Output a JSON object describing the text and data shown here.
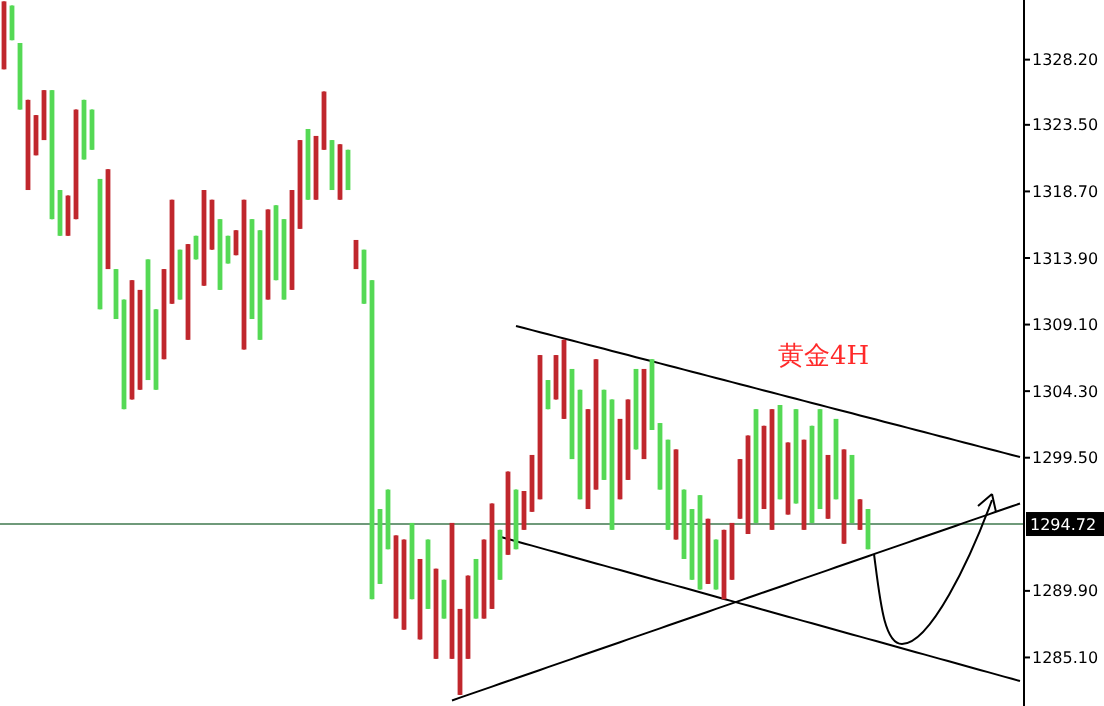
{
  "chart_data": {
    "type": "candlestick",
    "annotations": [
      "黄金4H"
    ],
    "categories": [
      null,
      null,
      null,
      null,
      null,
      null,
      null,
      null,
      null,
      null,
      null,
      null,
      null,
      null,
      null,
      null,
      null,
      null,
      null,
      null,
      null,
      null,
      null,
      null,
      null,
      null,
      null,
      null,
      null,
      null,
      null,
      null,
      null,
      null,
      null,
      null,
      null,
      null,
      null,
      null,
      null,
      null,
      null,
      null,
      null,
      null,
      null,
      null,
      null,
      null,
      null,
      null,
      null,
      null,
      null,
      null,
      null,
      null,
      null,
      null,
      null,
      null,
      null,
      null,
      null,
      null,
      null,
      null,
      null,
      null,
      null,
      null,
      null,
      null,
      null,
      null,
      null,
      null,
      null,
      null,
      null,
      null,
      null,
      null,
      null,
      null,
      null,
      null,
      null,
      null,
      null,
      null,
      null,
      null,
      null,
      null,
      null,
      null,
      null,
      null,
      null,
      null,
      null,
      null,
      null,
      null,
      null,
      null,
      null,
      null,
      null,
      null,
      null,
      null,
      null,
      null,
      null,
      null,
      null,
      null,
      null,
      null,
      null,
      null,
      null,
      null,
      null,
      null
    ],
    "ohlc": [
      [
        1327.5,
        1332.4,
        1327.5,
        1332.4
      ],
      [
        1332.1,
        1332.1,
        1329.6,
        1329.6
      ],
      [
        1329.4,
        1329.4,
        1324.6,
        1324.6
      ],
      [
        1318.8,
        1325.3,
        1318.8,
        1325.3
      ],
      [
        1321.3,
        1324.2,
        1321.3,
        1324.2
      ],
      [
        1322.4,
        1326.0,
        1322.4,
        1326.0
      ],
      [
        1326.0,
        1326.0,
        1316.7,
        1316.7
      ],
      [
        1318.8,
        1318.8,
        1315.5,
        1315.5
      ],
      [
        1315.5,
        1318.4,
        1315.5,
        1318.4
      ],
      [
        1316.7,
        1324.6,
        1316.7,
        1324.6
      ],
      [
        1325.3,
        1325.3,
        1321.0,
        1321.0
      ],
      [
        1324.6,
        1324.6,
        1321.7,
        1321.7
      ],
      [
        1319.6,
        1319.6,
        1310.2,
        1310.2
      ],
      [
        1313.1,
        1320.3,
        1313.1,
        1320.3
      ],
      [
        1313.1,
        1313.1,
        1309.5,
        1309.5
      ],
      [
        1310.9,
        1310.9,
        1303.0,
        1303.0
      ],
      [
        1303.7,
        1312.3,
        1303.7,
        1312.3
      ],
      [
        1304.4,
        1311.6,
        1304.4,
        1311.6
      ],
      [
        1313.8,
        1313.8,
        1305.1,
        1305.1
      ],
      [
        1310.2,
        1310.2,
        1304.4,
        1304.4
      ],
      [
        1306.6,
        1313.1,
        1306.6,
        1313.1
      ],
      [
        1310.6,
        1318.1,
        1310.6,
        1318.1
      ],
      [
        1314.5,
        1314.5,
        1310.9,
        1310.9
      ],
      [
        1308.0,
        1314.9,
        1308.0,
        1314.9
      ],
      [
        1315.5,
        1315.5,
        1313.8,
        1313.8
      ],
      [
        1311.9,
        1318.8,
        1311.9,
        1318.8
      ],
      [
        1314.5,
        1318.1,
        1314.5,
        1318.1
      ],
      [
        1316.7,
        1316.7,
        1311.6,
        1311.6
      ],
      [
        1315.5,
        1315.5,
        1313.5,
        1313.5
      ],
      [
        1314.1,
        1315.9,
        1314.1,
        1315.9
      ],
      [
        1307.3,
        1318.1,
        1307.3,
        1318.1
      ],
      [
        1316.7,
        1316.7,
        1309.5,
        1309.5
      ],
      [
        1315.9,
        1315.9,
        1308.0,
        1308.0
      ],
      [
        1310.9,
        1317.4,
        1310.9,
        1317.4
      ],
      [
        1317.7,
        1317.7,
        1312.3,
        1312.3
      ],
      [
        1316.7,
        1316.7,
        1310.9,
        1310.9
      ],
      [
        1311.6,
        1318.8,
        1311.6,
        1318.8
      ],
      [
        1316.0,
        1322.4,
        1316.0,
        1322.4
      ],
      [
        1323.2,
        1323.2,
        1318.1,
        1318.1
      ],
      [
        1318.1,
        1322.7,
        1318.1,
        1322.7
      ],
      [
        1321.7,
        1325.9,
        1321.7,
        1325.9
      ],
      [
        1322.4,
        1322.4,
        1318.8,
        1318.8
      ],
      [
        1318.1,
        1322.1,
        1318.1,
        1322.1
      ],
      [
        1321.7,
        1321.7,
        1318.8,
        1318.8
      ],
      [
        1313.1,
        1315.2,
        1313.1,
        1315.2
      ],
      [
        1314.5,
        1314.5,
        1310.6,
        1310.6
      ],
      [
        1312.3,
        1312.3,
        1289.3,
        1289.3
      ],
      [
        1295.8,
        1295.8,
        1290.4,
        1290.4
      ],
      [
        1297.2,
        1297.2,
        1292.9,
        1292.9
      ],
      [
        1287.9,
        1293.9,
        1287.9,
        1293.9
      ],
      [
        1287.1,
        1293.6,
        1287.1,
        1293.6
      ],
      [
        1294.8,
        1294.8,
        1289.3,
        1289.3
      ],
      [
        1286.4,
        1292.2,
        1286.4,
        1292.2
      ],
      [
        1293.6,
        1293.6,
        1288.6,
        1288.6
      ],
      [
        1285.0,
        1291.5,
        1285.0,
        1291.5
      ],
      [
        1290.7,
        1290.7,
        1287.9,
        1287.9
      ],
      [
        1285.0,
        1294.8,
        1285.0,
        1294.8
      ],
      [
        1282.4,
        1288.6,
        1282.4,
        1288.6
      ],
      [
        1285.0,
        1291.0,
        1285.0,
        1291.0
      ],
      [
        1292.2,
        1292.2,
        1287.9,
        1287.9
      ],
      [
        1287.9,
        1293.6,
        1287.9,
        1293.6
      ],
      [
        1288.6,
        1296.2,
        1288.6,
        1296.2
      ],
      [
        1294.3,
        1294.3,
        1290.7,
        1290.7
      ],
      [
        1292.5,
        1298.5,
        1292.5,
        1298.5
      ],
      [
        1297.2,
        1297.2,
        1292.9,
        1292.9
      ],
      [
        1294.3,
        1297.1,
        1294.3,
        1297.1
      ],
      [
        1295.6,
        1299.7,
        1295.6,
        1299.7
      ],
      [
        1296.5,
        1306.9,
        1296.5,
        1306.9
      ],
      [
        1305.1,
        1305.1,
        1303.0,
        1303.0
      ],
      [
        1303.7,
        1306.9,
        1303.7,
        1306.9
      ],
      [
        1302.3,
        1308.0,
        1302.3,
        1308.0
      ],
      [
        1305.9,
        1305.9,
        1299.4,
        1299.4
      ],
      [
        1304.4,
        1304.4,
        1296.5,
        1296.5
      ],
      [
        1295.8,
        1303.0,
        1295.8,
        1303.0
      ],
      [
        1297.2,
        1306.6,
        1297.2,
        1306.6
      ],
      [
        1304.4,
        1304.4,
        1297.9,
        1297.9
      ],
      [
        1303.7,
        1303.7,
        1294.3,
        1294.3
      ],
      [
        1296.5,
        1302.3,
        1296.5,
        1302.3
      ],
      [
        1297.9,
        1303.7,
        1297.9,
        1303.7
      ],
      [
        1305.9,
        1305.9,
        1300.1,
        1300.1
      ],
      [
        1299.4,
        1305.9,
        1299.4,
        1305.9
      ],
      [
        1306.6,
        1306.6,
        1301.5,
        1301.5
      ],
      [
        1302.0,
        1302.0,
        1297.2,
        1297.2
      ],
      [
        1300.8,
        1300.8,
        1294.3,
        1294.3
      ],
      [
        1293.6,
        1300.1,
        1293.6,
        1300.1
      ],
      [
        1297.2,
        1297.2,
        1292.2,
        1292.2
      ],
      [
        1295.8,
        1295.8,
        1290.7,
        1290.7
      ],
      [
        1296.8,
        1296.8,
        1290.0,
        1290.0
      ],
      [
        1290.4,
        1295.1,
        1290.4,
        1295.1
      ],
      [
        1293.6,
        1293.6,
        1290.0,
        1290.0
      ],
      [
        1289.3,
        1294.3,
        1289.3,
        1294.3
      ],
      [
        1290.7,
        1294.8,
        1290.7,
        1294.8
      ],
      [
        1295.1,
        1299.4,
        1295.1,
        1299.4
      ],
      [
        1294.0,
        1301.1,
        1294.0,
        1301.1
      ],
      [
        1303.0,
        1303.0,
        1294.8,
        1294.8
      ],
      [
        1295.8,
        1301.8,
        1295.8,
        1301.8
      ],
      [
        1294.3,
        1303.0,
        1294.3,
        1303.0
      ],
      [
        1303.3,
        1303.3,
        1296.5,
        1296.5
      ],
      [
        1295.4,
        1300.6,
        1295.4,
        1300.6
      ],
      [
        1303.0,
        1303.0,
        1296.2,
        1296.2
      ],
      [
        1294.3,
        1300.8,
        1294.3,
        1300.8
      ],
      [
        1301.8,
        1301.8,
        1294.8,
        1294.8
      ],
      [
        1303.0,
        1303.0,
        1295.8,
        1295.8
      ],
      [
        1295.1,
        1299.7,
        1295.1,
        1299.7
      ],
      [
        1302.3,
        1302.3,
        1296.5,
        1296.5
      ],
      [
        1293.3,
        1300.1,
        1293.3,
        1300.1
      ],
      [
        1299.7,
        1299.7,
        1294.8,
        1294.8
      ],
      [
        1294.3,
        1296.5,
        1294.3,
        1296.5
      ],
      [
        1295.8,
        1295.8,
        1292.9,
        1292.9
      ],
      null,
      null,
      null,
      null,
      null,
      null,
      null,
      null,
      null,
      null,
      null,
      null,
      null,
      null,
      null,
      null,
      null,
      null,
      null
    ],
    "colors": [
      "#c0272d",
      "#55d955",
      "#55d955",
      "#c0272d",
      "#c0272d",
      "#c0272d",
      "#55d955",
      "#55d955",
      "#c0272d",
      "#c0272d",
      "#55d955",
      "#55d955",
      "#55d955",
      "#c0272d",
      "#55d955",
      "#55d955",
      "#c0272d",
      "#c0272d",
      "#55d955",
      "#55d955",
      "#c0272d",
      "#c0272d",
      "#55d955",
      "#c0272d",
      "#55d955",
      "#c0272d",
      "#c0272d",
      "#55d955",
      "#55d955",
      "#c0272d",
      "#c0272d",
      "#55d955",
      "#55d955",
      "#c0272d",
      "#55d955",
      "#55d955",
      "#c0272d",
      "#c0272d",
      "#55d955",
      "#c0272d",
      "#c0272d",
      "#55d955",
      "#c0272d",
      "#55d955",
      "#c0272d",
      "#55d955",
      "#55d955",
      "#55d955",
      "#55d955",
      "#c0272d",
      "#c0272d",
      "#55d955",
      "#c0272d",
      "#55d955",
      "#c0272d",
      "#55d955",
      "#c0272d",
      "#c0272d",
      "#c0272d",
      "#55d955",
      "#c0272d",
      "#c0272d",
      "#55d955",
      "#c0272d",
      "#55d955",
      "#c0272d",
      "#c0272d",
      "#c0272d",
      "#55d955",
      "#c0272d",
      "#c0272d",
      "#55d955",
      "#55d955",
      "#c0272d",
      "#c0272d",
      "#55d955",
      "#55d955",
      "#c0272d",
      "#c0272d",
      "#55d955",
      "#c0272d",
      "#55d955",
      "#55d955",
      "#55d955",
      "#c0272d",
      "#55d955",
      "#55d955",
      "#55d955",
      "#c0272d",
      "#55d955",
      "#c0272d",
      "#c0272d",
      "#c0272d",
      "#c0272d",
      "#55d955",
      "#c0272d",
      "#c0272d",
      "#55d955",
      "#c0272d",
      "#55d955",
      "#c0272d",
      "#55d955",
      "#55d955",
      "#c0272d",
      "#55d955",
      "#c0272d",
      "#55d955",
      "#c0272d",
      "#55d955",
      null,
      null,
      null,
      null,
      null,
      null,
      null,
      null,
      null,
      null,
      null,
      null,
      null,
      null,
      null,
      null,
      null,
      null,
      null
    ],
    "series": [
      {
        "type": "line",
        "color": "#000000",
        "values": [
          null,
          null,
          null,
          null,
          null,
          null,
          null,
          null,
          null,
          null,
          null,
          null,
          null,
          null,
          null,
          null,
          null,
          null,
          null,
          null,
          null,
          null,
          null,
          null,
          null,
          null,
          null,
          null,
          null,
          null,
          null,
          null,
          null,
          null,
          null,
          null,
          null,
          null,
          null,
          null,
          null,
          null,
          null,
          null,
          null,
          null,
          null,
          null,
          null,
          null,
          null,
          null,
          null,
          null,
          null,
          null,
          null,
          null,
          null,
          null,
          null,
          null,
          null,
          null,
          1309,
          1308.85,
          1308.7,
          1308.55,
          1308.4,
          1308.25,
          1308.1,
          1307.95,
          1307.8,
          1307.65,
          1307.5,
          1307.35,
          1307.2,
          1307.05,
          1306.9,
          1306.75,
          1306.6,
          1306.45,
          1306.3,
          1306.15,
          1306,
          1305.85,
          1305.7,
          1305.55,
          1305.4,
          1305.25,
          1305.1,
          1304.95,
          1304.8,
          1304.65,
          1304.5,
          1304.35,
          1304.2,
          1304.05,
          1303.9,
          1303.75,
          1303.6,
          1303.45,
          1303.3,
          1303.15,
          1303,
          1302.85,
          1302.7,
          1302.55,
          1302.4,
          1302.25,
          1302.1,
          1301.95,
          1301.8,
          1301.65,
          1301.5,
          1301.35,
          1301.2,
          1301.05,
          1300.9,
          1300.75,
          1300.6,
          1300.45,
          1300.3,
          1300.15,
          1300,
          1299.85,
          1299.7,
          1299.55
        ]
      },
      {
        "type": "line",
        "color": "#000000",
        "values": [
          null,
          null,
          null,
          null,
          null,
          null,
          null,
          null,
          null,
          null,
          null,
          null,
          null,
          null,
          null,
          null,
          null,
          null,
          null,
          null,
          null,
          null,
          null,
          null,
          null,
          null,
          null,
          null,
          null,
          null,
          null,
          null,
          null,
          null,
          null,
          null,
          null,
          null,
          null,
          null,
          null,
          null,
          null,
          null,
          null,
          null,
          null,
          null,
          null,
          null,
          null,
          null,
          null,
          null,
          null,
          null,
          null,
          null,
          null,
          null,
          null,
          null,
          1293.8,
          1293.64,
          1293.48,
          1293.32,
          1293.16,
          1293,
          1292.84,
          1292.68,
          1292.52,
          1292.36,
          1292.2,
          1292.04,
          1291.88,
          1291.72,
          1291.56,
          1291.4,
          1291.24,
          1291.08,
          1290.92,
          1290.76,
          1290.6,
          1290.44,
          1290.28,
          1290.12,
          1289.96,
          1289.8,
          1289.64,
          1289.48,
          1289.32,
          1289.16,
          1289,
          1288.84,
          1288.68,
          1288.52,
          1288.36,
          1288.2,
          1288.04,
          1287.88,
          1287.72,
          1287.56,
          1287.4,
          1287.24,
          1287.08,
          1286.92,
          1286.76,
          1286.6,
          1286.44,
          1286.28,
          1286.12,
          1285.96,
          1285.8,
          1285.64,
          1285.48,
          1285.32,
          1285.16,
          1285,
          1284.84,
          1284.68,
          1284.52,
          1284.36,
          1284.2,
          1284.04,
          1283.88,
          1283.72,
          1283.56,
          1283.4
        ]
      },
      {
        "type": "line",
        "color": "#000000",
        "values": [
          null,
          null,
          null,
          null,
          null,
          null,
          null,
          null,
          null,
          null,
          null,
          null,
          null,
          null,
          null,
          null,
          null,
          null,
          null,
          null,
          null,
          null,
          null,
          null,
          null,
          null,
          null,
          null,
          null,
          null,
          null,
          null,
          null,
          null,
          null,
          null,
          null,
          null,
          null,
          null,
          null,
          null,
          null,
          null,
          null,
          null,
          null,
          null,
          null,
          null,
          null,
          null,
          null,
          null,
          null,
          null,
          1282,
          1282.2,
          1282.4,
          1282.6,
          1282.8,
          1283,
          1283.2,
          1283.4,
          1283.6,
          1283.8,
          1284,
          1284.2,
          1284.4,
          1284.6,
          1284.8,
          1285,
          1285.2,
          1285.4,
          1285.6,
          1285.8,
          1286,
          1286.2,
          1286.4,
          1286.6,
          1286.8,
          1287,
          1287.2,
          1287.4,
          1287.6,
          1287.8,
          1288,
          1288.2,
          1288.4,
          1288.6,
          1288.8,
          1289,
          1289.2,
          1289.4,
          1289.6,
          1289.8,
          1290,
          1290.2,
          1290.4,
          1290.6,
          1290.8,
          1291,
          1291.2,
          1291.4,
          1291.6,
          1291.8,
          1292,
          1292.2,
          1292.4,
          1292.6,
          1292.8,
          1293,
          1293.2,
          1293.4,
          1293.6,
          1293.8,
          1294,
          1294.2,
          1294.4,
          1294.6,
          1294.8,
          1295,
          1295.2,
          1295.4,
          1295.6,
          1295.8,
          1296,
          1296.2
        ]
      }
    ],
    "line_style": "solid",
    "marker": "none",
    "ylim": [
      1281.6,
      1332.5
    ],
    "yticks": [
      {
        "value": 1328.2,
        "label": "1328.20"
      },
      {
        "value": 1323.5,
        "label": "1323.50"
      },
      {
        "value": 1318.7,
        "label": "1318.70"
      },
      {
        "value": 1313.9,
        "label": "1313.90"
      },
      {
        "value": 1309.1,
        "label": "1309.10"
      },
      {
        "value": 1304.3,
        "label": "1304.30"
      },
      {
        "value": 1299.5,
        "label": "1299.50"
      },
      {
        "value": 1289.9,
        "label": "1289.90"
      },
      {
        "value": 1285.1,
        "label": "1285.10"
      }
    ],
    "ref_lines": [
      {
        "axis": "y",
        "value": 1294.72,
        "label": "1294.72",
        "color": "#6f9a7a"
      }
    ],
    "tick_labels": "y",
    "grid": false
  }
}
